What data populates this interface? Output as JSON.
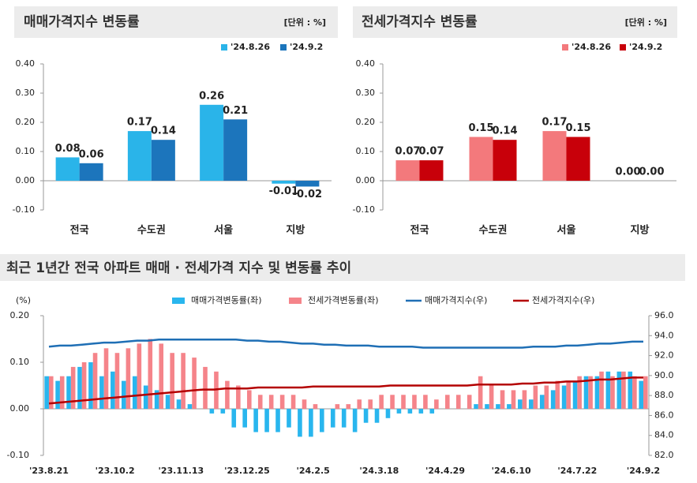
{
  "chart_data": [
    {
      "type": "bar",
      "title": "매매가격지수 변동률",
      "unit": "[단위 : %]",
      "categories": [
        "전국",
        "수도권",
        "서울",
        "지방"
      ],
      "series": [
        {
          "name": "'24.8.26",
          "color": "#2ab4e9",
          "values": [
            0.08,
            0.17,
            0.26,
            -0.01
          ],
          "value_labels": [
            "0.08",
            "0.17",
            "0.26",
            "-0.01"
          ]
        },
        {
          "name": "'24.9.2",
          "color": "#1c75bc",
          "values": [
            0.06,
            0.14,
            0.21,
            -0.02
          ],
          "value_labels": [
            "0.06",
            "0.14",
            "0.21",
            "-0.02"
          ]
        }
      ],
      "ylim": [
        -0.1,
        0.4
      ],
      "yticks": [
        {
          "value": -0.1,
          "label": "-0.10"
        },
        {
          "value": 0,
          "label": "0.00"
        },
        {
          "value": 0.1,
          "label": "0.10"
        },
        {
          "value": 0.2,
          "label": "0.20"
        },
        {
          "value": 0.3,
          "label": "0.30"
        },
        {
          "value": 0.4,
          "label": "0.40"
        }
      ]
    },
    {
      "type": "bar",
      "title": "전세가격지수 변동률",
      "unit": "[단위 : %]",
      "categories": [
        "전국",
        "수도권",
        "서울",
        "지방"
      ],
      "series": [
        {
          "name": "'24.8.26",
          "color": "#f3797c",
          "values": [
            0.07,
            0.15,
            0.17,
            0
          ],
          "value_labels": [
            "0.07",
            "0.15",
            "0.17",
            "0.00"
          ]
        },
        {
          "name": "'24.9.2",
          "color": "#c8000a",
          "values": [
            0.07,
            0.14,
            0.15,
            0
          ],
          "value_labels": [
            "0.07",
            "0.14",
            "0.15",
            "0.00"
          ]
        }
      ],
      "ylim": [
        -0.1,
        0.4
      ],
      "yticks": [
        {
          "value": -0.1,
          "label": "-0.10"
        },
        {
          "value": 0,
          "label": "0.00"
        },
        {
          "value": 0.1,
          "label": "0.10"
        },
        {
          "value": 0.2,
          "label": "0.20"
        },
        {
          "value": 0.3,
          "label": "0.30"
        },
        {
          "value": 0.4,
          "label": "0.40"
        }
      ]
    },
    {
      "type": "combo",
      "title": "최근 1년간 전국 아파트 매매 · 전세가격 지수 및 변동률 추이",
      "y_label": "(%)",
      "categories": [
        "'23.8.21",
        null,
        null,
        null,
        null,
        null,
        "'23.10.2",
        null,
        null,
        null,
        null,
        null,
        "'23.11.13",
        null,
        null,
        null,
        null,
        null,
        "'23.12.25",
        null,
        null,
        null,
        null,
        null,
        "'24.2.5",
        null,
        null,
        null,
        null,
        null,
        "'24.3.18",
        null,
        null,
        null,
        null,
        null,
        "'24.4.29",
        null,
        null,
        null,
        null,
        null,
        "'24.6.10",
        null,
        null,
        null,
        null,
        null,
        "'24.7.22",
        null,
        null,
        null,
        null,
        null,
        "'24.9.2"
      ],
      "series": [
        {
          "name": "매매가격변동률(좌)",
          "type": "bar",
          "color": "#29b6ee",
          "values": [
            0.07,
            0.06,
            0.07,
            0.09,
            0.1,
            0.07,
            0.08,
            0.06,
            0.07,
            0.05,
            0.04,
            0.03,
            0.02,
            0.01,
            0,
            -0.01,
            -0.01,
            -0.04,
            -0.04,
            -0.05,
            -0.05,
            -0.05,
            -0.04,
            -0.06,
            -0.06,
            -0.05,
            -0.04,
            -0.04,
            -0.05,
            -0.03,
            -0.03,
            -0.02,
            -0.01,
            -0.01,
            -0.01,
            -0.01,
            0,
            0,
            0,
            0.01,
            0.01,
            0.01,
            0.01,
            0.02,
            0.02,
            0.03,
            0.04,
            0.05,
            0.06,
            0.07,
            0.07,
            0.08,
            0.08,
            0.08,
            0.06
          ]
        },
        {
          "name": "전세가격변동률(좌)",
          "type": "bar",
          "color": "#f5848a",
          "values": [
            0.07,
            0.07,
            0.09,
            0.1,
            0.12,
            0.13,
            0.12,
            0.13,
            0.14,
            0.15,
            0.14,
            0.12,
            0.12,
            0.11,
            0.09,
            0.08,
            0.06,
            0.05,
            0.04,
            0.03,
            0.03,
            0.03,
            0.03,
            0.02,
            0.01,
            0,
            0.01,
            0.01,
            0.02,
            0.02,
            0.03,
            0.03,
            0.03,
            0.03,
            0.03,
            0.02,
            0.03,
            0.03,
            0.03,
            0.07,
            0.05,
            0.04,
            0.04,
            0.04,
            0.05,
            0.05,
            0.06,
            0.06,
            0.07,
            0.07,
            0.08,
            0.07,
            0.08,
            0.07,
            0.07
          ]
        },
        {
          "name": "매매가격지수(우)",
          "type": "line",
          "axis": "y2",
          "color": "#1f6fb5",
          "values": [
            92.9,
            93.0,
            93.0,
            93.1,
            93.2,
            93.3,
            93.3,
            93.4,
            93.5,
            93.5,
            93.6,
            93.6,
            93.6,
            93.6,
            93.6,
            93.6,
            93.6,
            93.6,
            93.5,
            93.5,
            93.4,
            93.4,
            93.3,
            93.2,
            93.2,
            93.1,
            93.1,
            93.0,
            93.0,
            93.0,
            92.9,
            92.9,
            92.9,
            92.9,
            92.8,
            92.8,
            92.8,
            92.8,
            92.8,
            92.8,
            92.8,
            92.8,
            92.8,
            92.8,
            92.9,
            92.9,
            92.9,
            93.0,
            93.0,
            93.1,
            93.2,
            93.2,
            93.3,
            93.4,
            93.4
          ]
        },
        {
          "name": "전세가격지수(우)",
          "type": "line",
          "axis": "y2",
          "color": "#b40000",
          "values": [
            87.2,
            87.3,
            87.4,
            87.5,
            87.6,
            87.7,
            87.8,
            87.9,
            88.0,
            88.1,
            88.2,
            88.3,
            88.4,
            88.5,
            88.6,
            88.6,
            88.7,
            88.7,
            88.7,
            88.8,
            88.8,
            88.8,
            88.8,
            88.8,
            88.9,
            88.9,
            88.9,
            88.9,
            88.9,
            88.9,
            88.9,
            89.0,
            89.0,
            89.0,
            89.0,
            89.0,
            89.0,
            89.0,
            89.0,
            89.1,
            89.1,
            89.1,
            89.1,
            89.2,
            89.2,
            89.3,
            89.3,
            89.4,
            89.4,
            89.5,
            89.6,
            89.6,
            89.7,
            89.8,
            89.8
          ]
        }
      ],
      "ylim": [
        -0.1,
        0.2
      ],
      "yticks": [
        {
          "value": -0.1,
          "label": "-0.10"
        },
        {
          "value": 0,
          "label": "0.00"
        },
        {
          "value": 0.1,
          "label": "0.10"
        },
        {
          "value": 0.2,
          "label": "0.20"
        }
      ],
      "y2lim": [
        82,
        96
      ],
      "y2ticks": [
        {
          "value": 82,
          "label": "82.0"
        },
        {
          "value": 84,
          "label": "84.0"
        },
        {
          "value": 86,
          "label": "86.0"
        },
        {
          "value": 88,
          "label": "88.0"
        },
        {
          "value": 90,
          "label": "90.0"
        },
        {
          "value": 92,
          "label": "92.0"
        },
        {
          "value": 94,
          "label": "94.0"
        },
        {
          "value": 96,
          "label": "96.0"
        }
      ]
    }
  ]
}
